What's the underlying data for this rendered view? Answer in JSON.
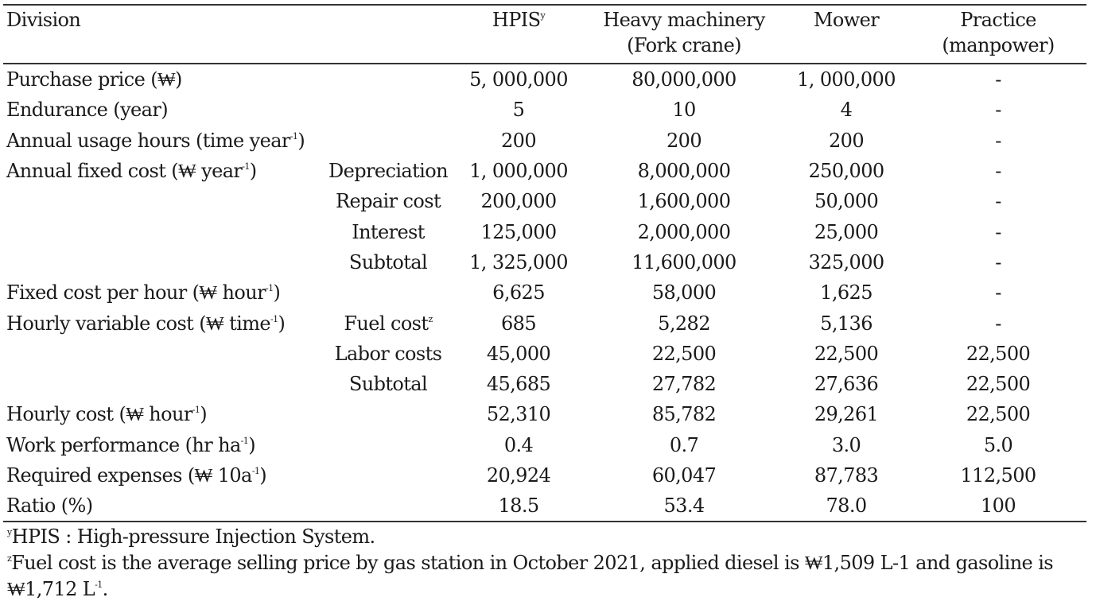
{
  "header": {
    "division": "Division",
    "hpis": "HPIS",
    "hpis_mark": "y",
    "heavy_line1": "Heavy machinery",
    "heavy_line2": "(Fork crane)",
    "mower": "Mower",
    "practice_line1": "Practice",
    "practice_line2": "(manpower)"
  },
  "rows": [
    {
      "label": "Purchase price (₩)",
      "label_sup": "",
      "label_tail": "",
      "sub": "",
      "sub_sup": "",
      "hpis": "5, 000,000",
      "heavy": "80,000,000",
      "mower": "1, 000,000",
      "practice": "-"
    },
    {
      "label": "Endurance (year)",
      "label_sup": "",
      "label_tail": "",
      "sub": "",
      "sub_sup": "",
      "hpis": "5",
      "heavy": "10",
      "mower": "4",
      "practice": "-"
    },
    {
      "label": "Annual usage hours (time year",
      "label_sup": "-1",
      "label_tail": ")",
      "sub": "",
      "sub_sup": "",
      "hpis": "200",
      "heavy": "200",
      "mower": "200",
      "practice": "-"
    },
    {
      "label": "Annual fixed cost (₩ year",
      "label_sup": "-1",
      "label_tail": ")",
      "sub": "Depreciation",
      "sub_sup": "",
      "hpis": "1, 000,000",
      "heavy": "8,000,000",
      "mower": "250,000",
      "practice": "-"
    },
    {
      "label": "",
      "label_sup": "",
      "label_tail": "",
      "sub": "Repair cost",
      "sub_sup": "",
      "hpis": "200,000",
      "heavy": "1,600,000",
      "mower": "50,000",
      "practice": "-"
    },
    {
      "label": "",
      "label_sup": "",
      "label_tail": "",
      "sub": "Interest",
      "sub_sup": "",
      "hpis": "125,000",
      "heavy": "2,000,000",
      "mower": "25,000",
      "practice": "-"
    },
    {
      "label": "",
      "label_sup": "",
      "label_tail": "",
      "sub": "Subtotal",
      "sub_sup": "",
      "hpis": "1, 325,000",
      "heavy": "11,600,000",
      "mower": "325,000",
      "practice": "-"
    },
    {
      "label": "Fixed cost per hour (₩ hour",
      "label_sup": "-1",
      "label_tail": ")",
      "sub": "",
      "sub_sup": "",
      "hpis": "6,625",
      "heavy": "58,000",
      "mower": "1,625",
      "practice": "-"
    },
    {
      "label": "Hourly variable cost (₩ time",
      "label_sup": "-1",
      "label_tail": ")",
      "sub": "Fuel cost",
      "sub_sup": "z",
      "hpis": "685",
      "heavy": "5,282",
      "mower": "5,136",
      "practice": "-"
    },
    {
      "label": "",
      "label_sup": "",
      "label_tail": "",
      "sub": "Labor costs",
      "sub_sup": "",
      "hpis": "45,000",
      "heavy": "22,500",
      "mower": "22,500",
      "practice": "22,500"
    },
    {
      "label": "",
      "label_sup": "",
      "label_tail": "",
      "sub": "Subtotal",
      "sub_sup": "",
      "hpis": "45,685",
      "heavy": "27,782",
      "mower": "27,636",
      "practice": "22,500"
    },
    {
      "label": "Hourly cost (₩ hour",
      "label_sup": "-1",
      "label_tail": ")",
      "sub": "",
      "sub_sup": "",
      "hpis": "52,310",
      "heavy": "85,782",
      "mower": "29,261",
      "practice": "22,500"
    },
    {
      "label": "Work performance (hr ha",
      "label_sup": "-1",
      "label_tail": ")",
      "sub": "",
      "sub_sup": "",
      "hpis": "0.4",
      "heavy": "0.7",
      "mower": "3.0",
      "practice": "5.0"
    },
    {
      "label": "Required expenses (₩ 10a",
      "label_sup": "-1",
      "label_tail": ")",
      "sub": "",
      "sub_sup": "",
      "hpis": "20,924",
      "heavy": "60,047",
      "mower": "87,783",
      "practice": "112,500"
    },
    {
      "label": "Ratio (%)",
      "label_sup": "",
      "label_tail": "",
      "sub": "",
      "sub_sup": "",
      "hpis": "18.5",
      "heavy": "53.4",
      "mower": "78.0",
      "practice": "100"
    }
  ],
  "notes": {
    "y_mark": "y",
    "y_text": "HPIS : High-pressure Injection System.",
    "z_mark": "z",
    "z_text": "Fuel cost is the average selling price by gas station in October 2021, applied diesel is ₩1,509 L-1 and gasoline is ₩1,712 L",
    "z_sup": "-1",
    "z_tail": "."
  }
}
